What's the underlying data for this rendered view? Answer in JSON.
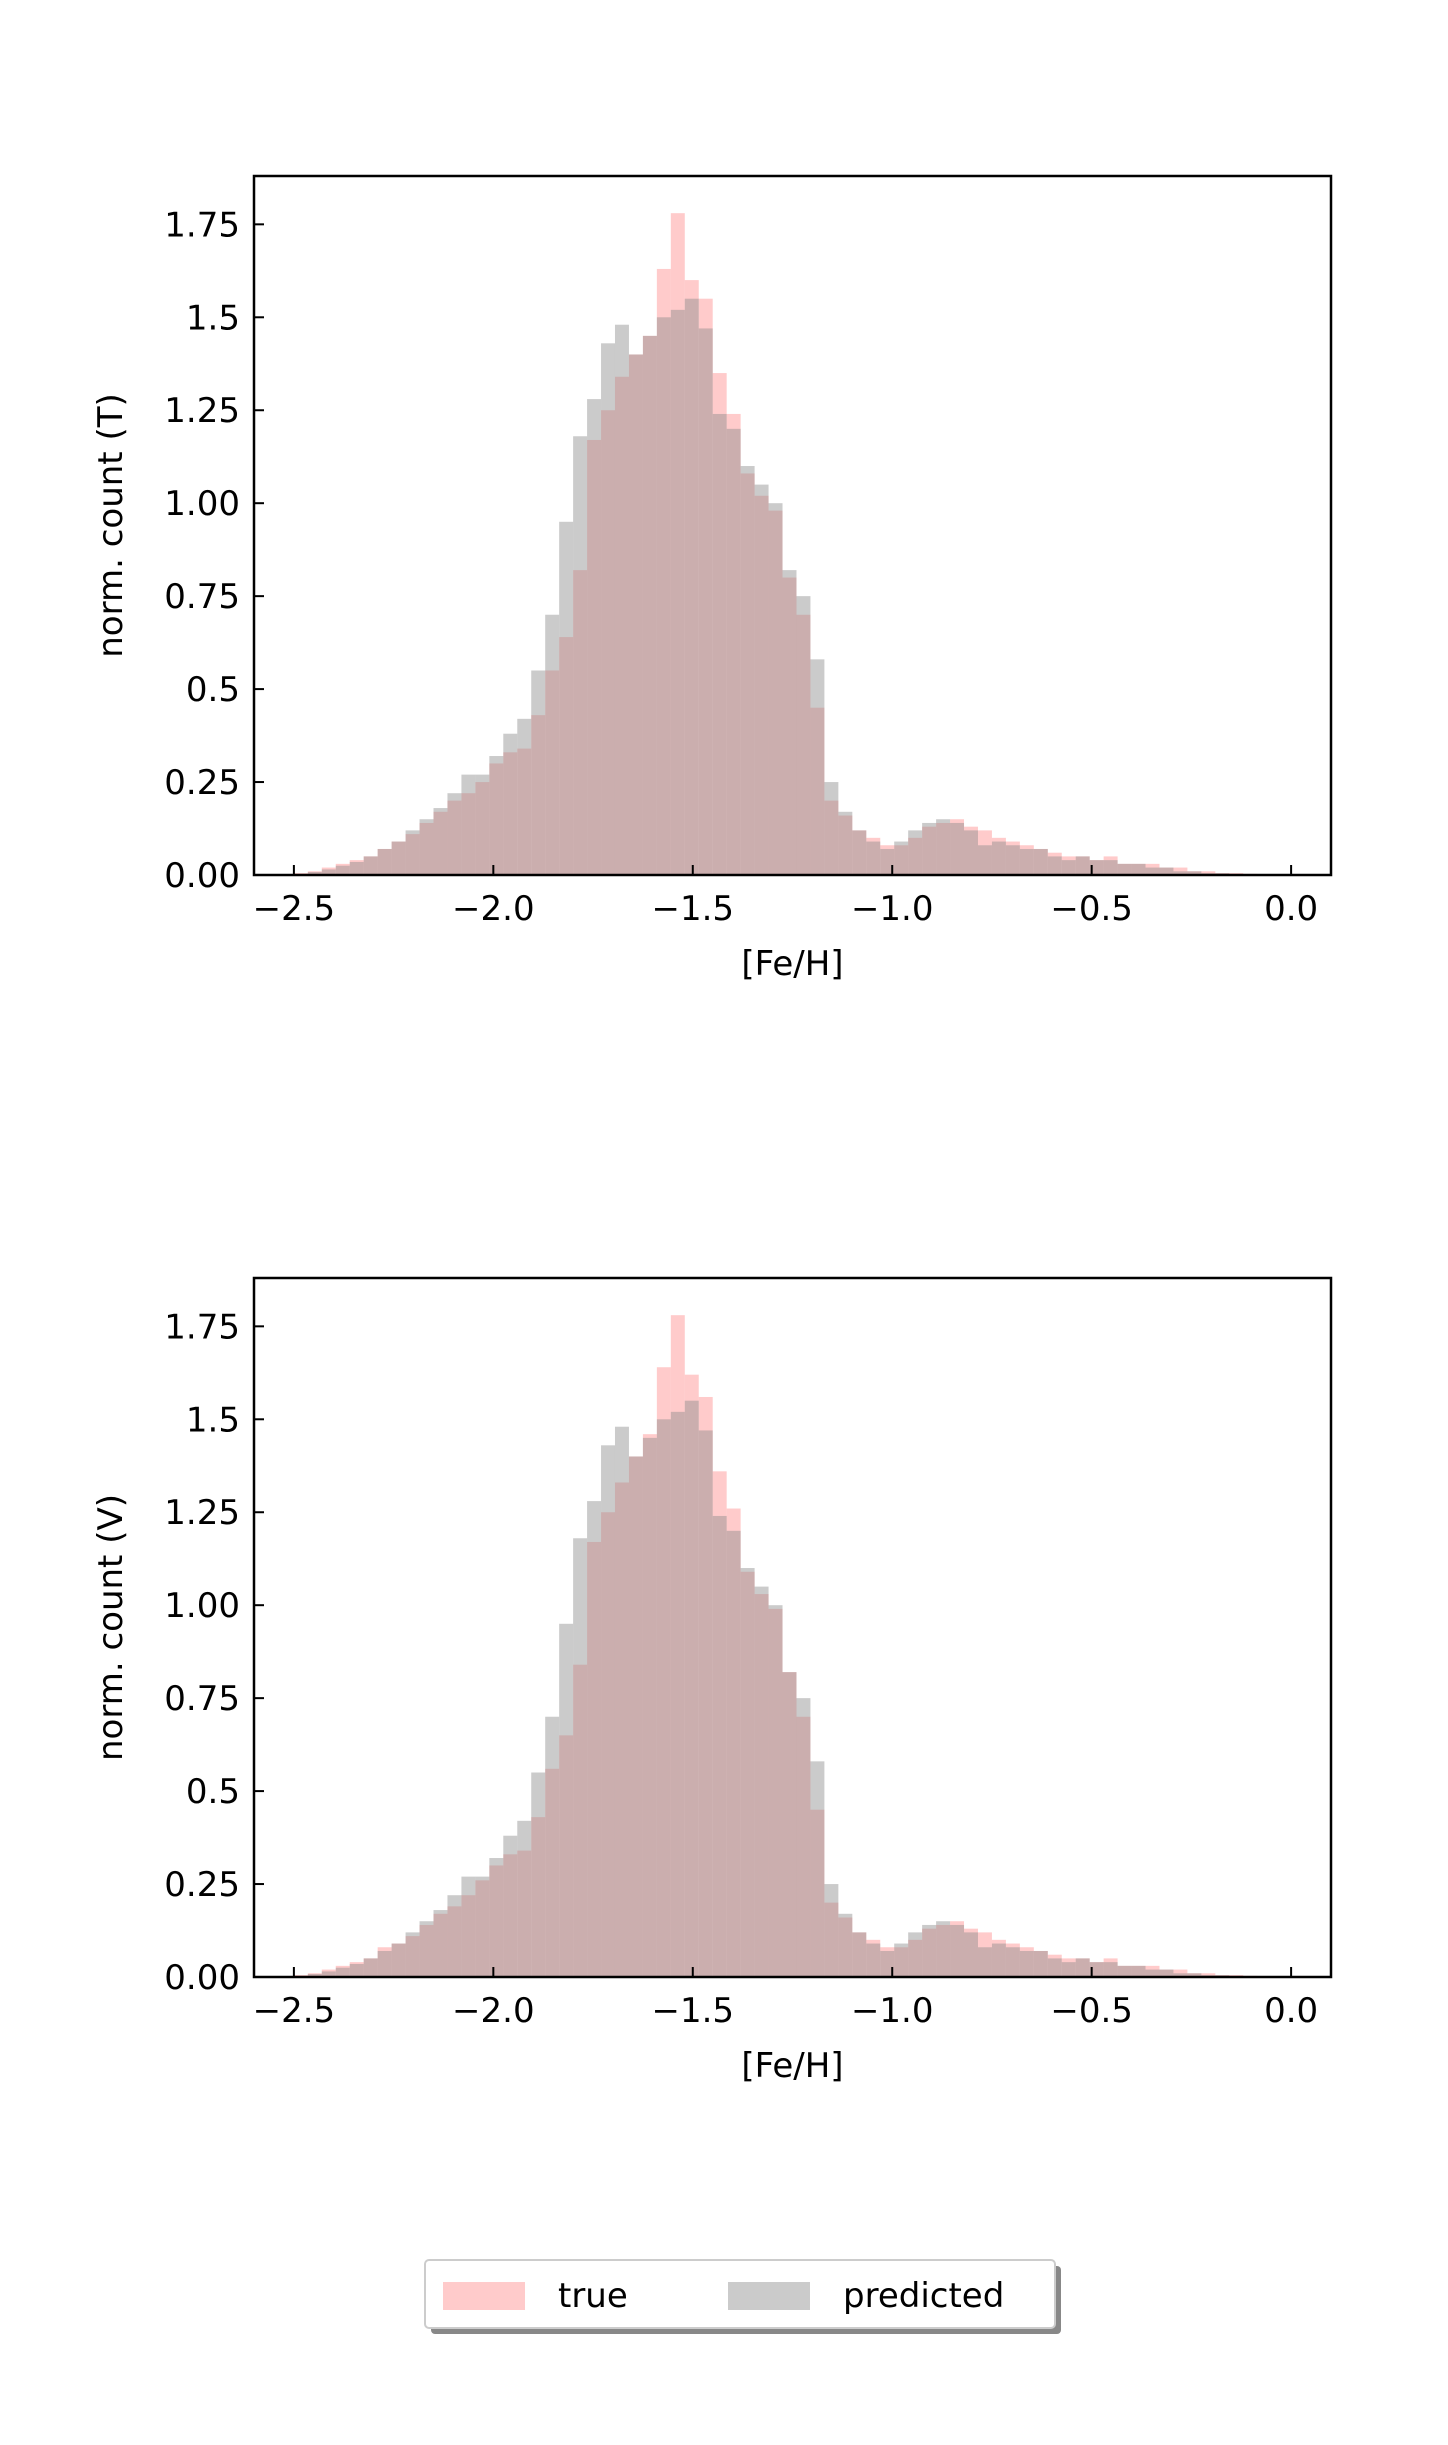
{
  "chart_data": [
    {
      "type": "histogram",
      "xlabel": "[Fe/H]",
      "ylabel": "norm. count (T)",
      "bins": [
        -2.5,
        -2.465,
        -2.43,
        -2.395,
        -2.36,
        -2.325,
        -2.29,
        -2.255,
        -2.22,
        -2.185,
        -2.15,
        -2.115,
        -2.08,
        -2.045,
        -2.01,
        -1.975,
        -1.94,
        -1.905,
        -1.87,
        -1.835,
        -1.8,
        -1.765,
        -1.73,
        -1.695,
        -1.66,
        -1.625,
        -1.59,
        -1.555,
        -1.52,
        -1.485,
        -1.45,
        -1.415,
        -1.38,
        -1.345,
        -1.31,
        -1.275,
        -1.24,
        -1.205,
        -1.17,
        -1.135,
        -1.1,
        -1.065,
        -1.03,
        -0.995,
        -0.96,
        -0.925,
        -0.89,
        -0.855,
        -0.82,
        -0.785,
        -0.75,
        -0.715,
        -0.68,
        -0.645,
        -0.61,
        -0.575,
        -0.54,
        -0.505,
        -0.47,
        -0.435,
        -0.4,
        -0.365,
        -0.33,
        -0.295,
        -0.26,
        -0.225,
        -0.19,
        -0.155,
        -0.12,
        -0.085,
        -0.05
      ],
      "series": [
        {
          "name": "true",
          "color": "#ff8c8c",
          "values": [
            0.005,
            0.01,
            0.02,
            0.03,
            0.04,
            0.05,
            0.07,
            0.09,
            0.11,
            0.14,
            0.17,
            0.2,
            0.22,
            0.25,
            0.3,
            0.33,
            0.34,
            0.43,
            0.55,
            0.64,
            0.82,
            1.17,
            1.25,
            1.34,
            1.4,
            1.45,
            1.63,
            1.78,
            1.6,
            1.55,
            1.35,
            1.24,
            1.08,
            1.02,
            0.98,
            0.8,
            0.7,
            0.45,
            0.2,
            0.16,
            0.12,
            0.1,
            0.08,
            0.08,
            0.1,
            0.13,
            0.14,
            0.15,
            0.13,
            0.12,
            0.1,
            0.09,
            0.08,
            0.07,
            0.06,
            0.05,
            0.05,
            0.04,
            0.05,
            0.03,
            0.03,
            0.03,
            0.02,
            0.02,
            0.01,
            0.01,
            0.005,
            0.005,
            0.003,
            0.002
          ]
        },
        {
          "name": "predicted",
          "color": "#8c8c8c",
          "values": [
            0.003,
            0.008,
            0.015,
            0.025,
            0.035,
            0.05,
            0.07,
            0.09,
            0.12,
            0.15,
            0.18,
            0.22,
            0.27,
            0.27,
            0.32,
            0.38,
            0.42,
            0.55,
            0.7,
            0.95,
            1.18,
            1.28,
            1.43,
            1.48,
            1.4,
            1.45,
            1.5,
            1.52,
            1.55,
            1.47,
            1.24,
            1.2,
            1.1,
            1.05,
            1.0,
            0.82,
            0.75,
            0.58,
            0.25,
            0.17,
            0.12,
            0.09,
            0.07,
            0.09,
            0.12,
            0.14,
            0.15,
            0.14,
            0.12,
            0.08,
            0.09,
            0.08,
            0.07,
            0.07,
            0.05,
            0.04,
            0.05,
            0.04,
            0.04,
            0.03,
            0.03,
            0.02,
            0.02,
            0.01,
            0.01,
            0.005,
            0.005,
            0.003,
            0.002,
            0.001
          ]
        }
      ],
      "xlim": [
        -2.6,
        0.1
      ],
      "ylim": [
        0,
        1.88
      ],
      "xticks": [
        {
          "value": -2.5,
          "label": "−2.5"
        },
        {
          "value": -2.0,
          "label": "−2.0"
        },
        {
          "value": -1.5,
          "label": "−1.5"
        },
        {
          "value": -1.0,
          "label": "−1.0"
        },
        {
          "value": -0.5,
          "label": "−0.5"
        },
        {
          "value": 0,
          "label": "0.0"
        }
      ],
      "yticks": [
        {
          "value": 0,
          "label": "0.00"
        },
        0.25,
        0.5,
        0.75,
        {
          "value": 1,
          "label": "1.00"
        },
        1.25,
        1.5,
        1.75
      ]
    },
    {
      "type": "histogram",
      "xlabel": "[Fe/H]",
      "ylabel": "norm. count (V)",
      "bins": [
        -2.5,
        -2.465,
        -2.43,
        -2.395,
        -2.36,
        -2.325,
        -2.29,
        -2.255,
        -2.22,
        -2.185,
        -2.15,
        -2.115,
        -2.08,
        -2.045,
        -2.01,
        -1.975,
        -1.94,
        -1.905,
        -1.87,
        -1.835,
        -1.8,
        -1.765,
        -1.73,
        -1.695,
        -1.66,
        -1.625,
        -1.59,
        -1.555,
        -1.52,
        -1.485,
        -1.45,
        -1.415,
        -1.38,
        -1.345,
        -1.31,
        -1.275,
        -1.24,
        -1.205,
        -1.17,
        -1.135,
        -1.1,
        -1.065,
        -1.03,
        -0.995,
        -0.96,
        -0.925,
        -0.89,
        -0.855,
        -0.82,
        -0.785,
        -0.75,
        -0.715,
        -0.68,
        -0.645,
        -0.61,
        -0.575,
        -0.54,
        -0.505,
        -0.47,
        -0.435,
        -0.4,
        -0.365,
        -0.33,
        -0.295,
        -0.26,
        -0.225,
        -0.19,
        -0.155,
        -0.12,
        -0.085,
        -0.05
      ],
      "series": [
        {
          "color": "#ff8c8c",
          "values": [
            0.005,
            0.01,
            0.02,
            0.03,
            0.04,
            0.05,
            0.08,
            0.09,
            0.11,
            0.14,
            0.17,
            0.19,
            0.22,
            0.26,
            0.3,
            0.33,
            0.34,
            0.43,
            0.56,
            0.65,
            0.84,
            1.17,
            1.25,
            1.33,
            1.4,
            1.46,
            1.64,
            1.78,
            1.62,
            1.56,
            1.36,
            1.26,
            1.09,
            1.03,
            0.99,
            0.82,
            0.7,
            0.45,
            0.2,
            0.16,
            0.12,
            0.1,
            0.08,
            0.08,
            0.1,
            0.13,
            0.14,
            0.15,
            0.13,
            0.12,
            0.1,
            0.09,
            0.08,
            0.07,
            0.06,
            0.05,
            0.05,
            0.04,
            0.05,
            0.03,
            0.03,
            0.03,
            0.02,
            0.02,
            0.01,
            0.01,
            0.005,
            0.005,
            0.003,
            0.002
          ]
        },
        {
          "color": "#8c8c8c",
          "values": [
            0.003,
            0.008,
            0.015,
            0.025,
            0.035,
            0.05,
            0.07,
            0.09,
            0.12,
            0.15,
            0.18,
            0.22,
            0.27,
            0.27,
            0.32,
            0.38,
            0.42,
            0.55,
            0.7,
            0.95,
            1.18,
            1.28,
            1.43,
            1.48,
            1.4,
            1.45,
            1.5,
            1.52,
            1.55,
            1.47,
            1.24,
            1.2,
            1.1,
            1.05,
            1.0,
            0.82,
            0.75,
            0.58,
            0.25,
            0.17,
            0.12,
            0.09,
            0.07,
            0.09,
            0.12,
            0.14,
            0.15,
            0.14,
            0.12,
            0.08,
            0.09,
            0.08,
            0.07,
            0.07,
            0.05,
            0.04,
            0.05,
            0.04,
            0.04,
            0.03,
            0.03,
            0.02,
            0.02,
            0.01,
            0.01,
            0.005,
            0.005,
            0.003,
            0.002,
            0.001
          ]
        }
      ],
      "xlim": [
        -2.6,
        0.1
      ],
      "ylim": [
        0,
        1.88
      ],
      "xticks": [
        {
          "value": -2.5,
          "label": "−2.5"
        },
        {
          "value": -2.0,
          "label": "−2.0"
        },
        {
          "value": -1.5,
          "label": "−1.5"
        },
        {
          "value": -1.0,
          "label": "−1.0"
        },
        {
          "value": -0.5,
          "label": "−0.5"
        },
        {
          "value": 0,
          "label": "0.0"
        }
      ],
      "yticks": [
        {
          "value": 0,
          "label": "0.00"
        },
        0.25,
        0.5,
        0.75,
        {
          "value": 1,
          "label": "1.00"
        },
        1.25,
        1.5,
        1.75
      ]
    }
  ]
}
